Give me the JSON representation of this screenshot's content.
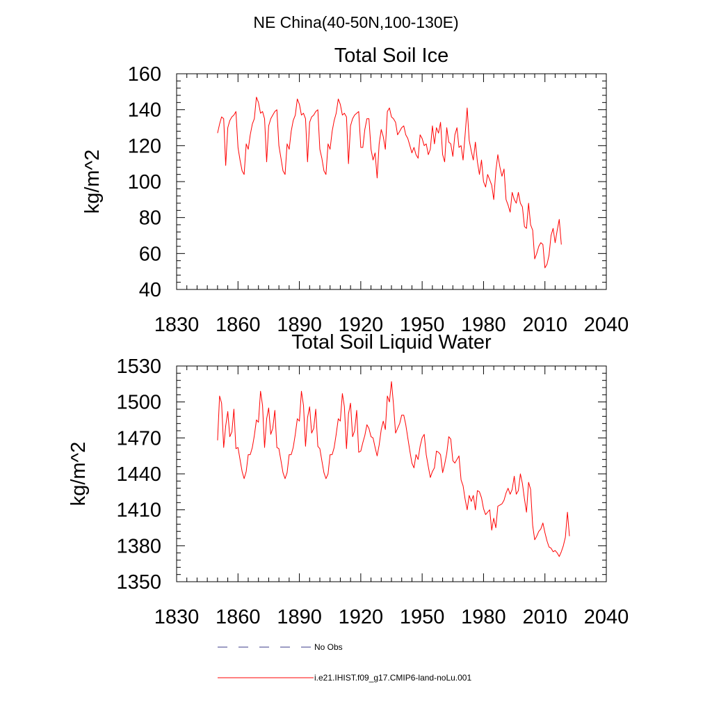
{
  "figure_title": "NE China(40-50N,100-130E)",
  "legend": [
    {
      "label": "No Obs",
      "style": "dashed",
      "color": "#3a3a8a"
    },
    {
      "label": "i.e21.IHIST.f09_g17.CMIP6-land-noLu.001",
      "style": "solid",
      "color": "#ff0000"
    }
  ],
  "chart_data": [
    {
      "type": "line",
      "title": "Total Soil Ice",
      "xlabel": "",
      "ylabel": "kg/m^2",
      "xlim": [
        1830,
        2040
      ],
      "ylim": [
        40,
        160
      ],
      "xticks": [
        1830,
        1860,
        1890,
        1920,
        1950,
        1980,
        2010,
        2040
      ],
      "yticks": [
        40,
        60,
        80,
        100,
        120,
        140,
        160
      ],
      "grid": false,
      "series": [
        {
          "name": "i.e21.IHIST.f09_g17.CMIP6-land-noLu.001",
          "color": "#ff0000",
          "x_start": 1850,
          "x_step": 1,
          "values": [
            127,
            132,
            136,
            135,
            109,
            130,
            134,
            136,
            137,
            139,
            119,
            112,
            106,
            104,
            121,
            118,
            126,
            132,
            135,
            147,
            144,
            138,
            139,
            135,
            111,
            131,
            135,
            137,
            139,
            140,
            120,
            113,
            106,
            104,
            121,
            118,
            128,
            134,
            137,
            146,
            143,
            137,
            138,
            135,
            111,
            133,
            136,
            137,
            139,
            140,
            118,
            113,
            106,
            104,
            121,
            118,
            128,
            134,
            138,
            146,
            143,
            137,
            138,
            136,
            110,
            131,
            135,
            137,
            138,
            139,
            119,
            119,
            129,
            135,
            135,
            118,
            112,
            116,
            102,
            121,
            129,
            125,
            118,
            139,
            141,
            136,
            135,
            133,
            126,
            128,
            130,
            131,
            126,
            124,
            120,
            116,
            119,
            115,
            113,
            126,
            124,
            120,
            121,
            115,
            118,
            131,
            121,
            130,
            127,
            133,
            115,
            111,
            130,
            122,
            121,
            114,
            126,
            130,
            119,
            120,
            112,
            126,
            141,
            123,
            117,
            112,
            122,
            111,
            104,
            112,
            100,
            97,
            104,
            101,
            98,
            90,
            106,
            115,
            108,
            103,
            107,
            90,
            87,
            83,
            94,
            90,
            88,
            94,
            88,
            86,
            75,
            74,
            88,
            76,
            73,
            57,
            60,
            64,
            66,
            65,
            52,
            54,
            59,
            70,
            74,
            66,
            73,
            79,
            65
          ]
        }
      ]
    },
    {
      "type": "line",
      "title": "Total Soil Liquid Water",
      "xlabel": "",
      "ylabel": "kg/m^2",
      "xlim": [
        1830,
        2040
      ],
      "ylim": [
        1350,
        1530
      ],
      "xticks": [
        1830,
        1860,
        1890,
        1920,
        1950,
        1980,
        2010,
        2040
      ],
      "yticks": [
        1350,
        1380,
        1410,
        1440,
        1470,
        1500,
        1530
      ],
      "grid": false,
      "series": [
        {
          "name": "i.e21.IHIST.f09_g17.CMIP6-land-noLu.001",
          "color": "#ff0000",
          "x_start": 1850,
          "x_step": 1,
          "values": [
            1468,
            1505,
            1499,
            1462,
            1480,
            1492,
            1471,
            1475,
            1494,
            1461,
            1462,
            1452,
            1442,
            1436,
            1442,
            1456,
            1456,
            1462,
            1472,
            1485,
            1483,
            1509,
            1497,
            1462,
            1486,
            1495,
            1473,
            1478,
            1493,
            1462,
            1461,
            1451,
            1441,
            1436,
            1441,
            1456,
            1456,
            1462,
            1473,
            1486,
            1484,
            1509,
            1497,
            1463,
            1487,
            1496,
            1474,
            1478,
            1494,
            1463,
            1461,
            1451,
            1441,
            1436,
            1440,
            1456,
            1456,
            1462,
            1473,
            1486,
            1484,
            1507,
            1496,
            1461,
            1490,
            1499,
            1471,
            1476,
            1493,
            1458,
            1459,
            1466,
            1472,
            1481,
            1478,
            1471,
            1470,
            1462,
            1455,
            1464,
            1477,
            1484,
            1477,
            1505,
            1500,
            1517,
            1498,
            1474,
            1478,
            1482,
            1489,
            1489,
            1481,
            1470,
            1459,
            1449,
            1445,
            1456,
            1452,
            1463,
            1470,
            1473,
            1456,
            1446,
            1437,
            1442,
            1445,
            1459,
            1458,
            1456,
            1441,
            1448,
            1457,
            1471,
            1469,
            1451,
            1449,
            1452,
            1455,
            1435,
            1430,
            1419,
            1410,
            1422,
            1417,
            1422,
            1410,
            1426,
            1425,
            1420,
            1411,
            1406,
            1408,
            1410,
            1393,
            1403,
            1395,
            1413,
            1414,
            1415,
            1418,
            1424,
            1428,
            1423,
            1427,
            1438,
            1423,
            1426,
            1440,
            1432,
            1419,
            1408,
            1433,
            1427,
            1397,
            1385,
            1388,
            1392,
            1394,
            1399,
            1391,
            1384,
            1379,
            1378,
            1375,
            1376,
            1374,
            1371,
            1375,
            1380,
            1387,
            1408,
            1388
          ]
        }
      ]
    }
  ]
}
